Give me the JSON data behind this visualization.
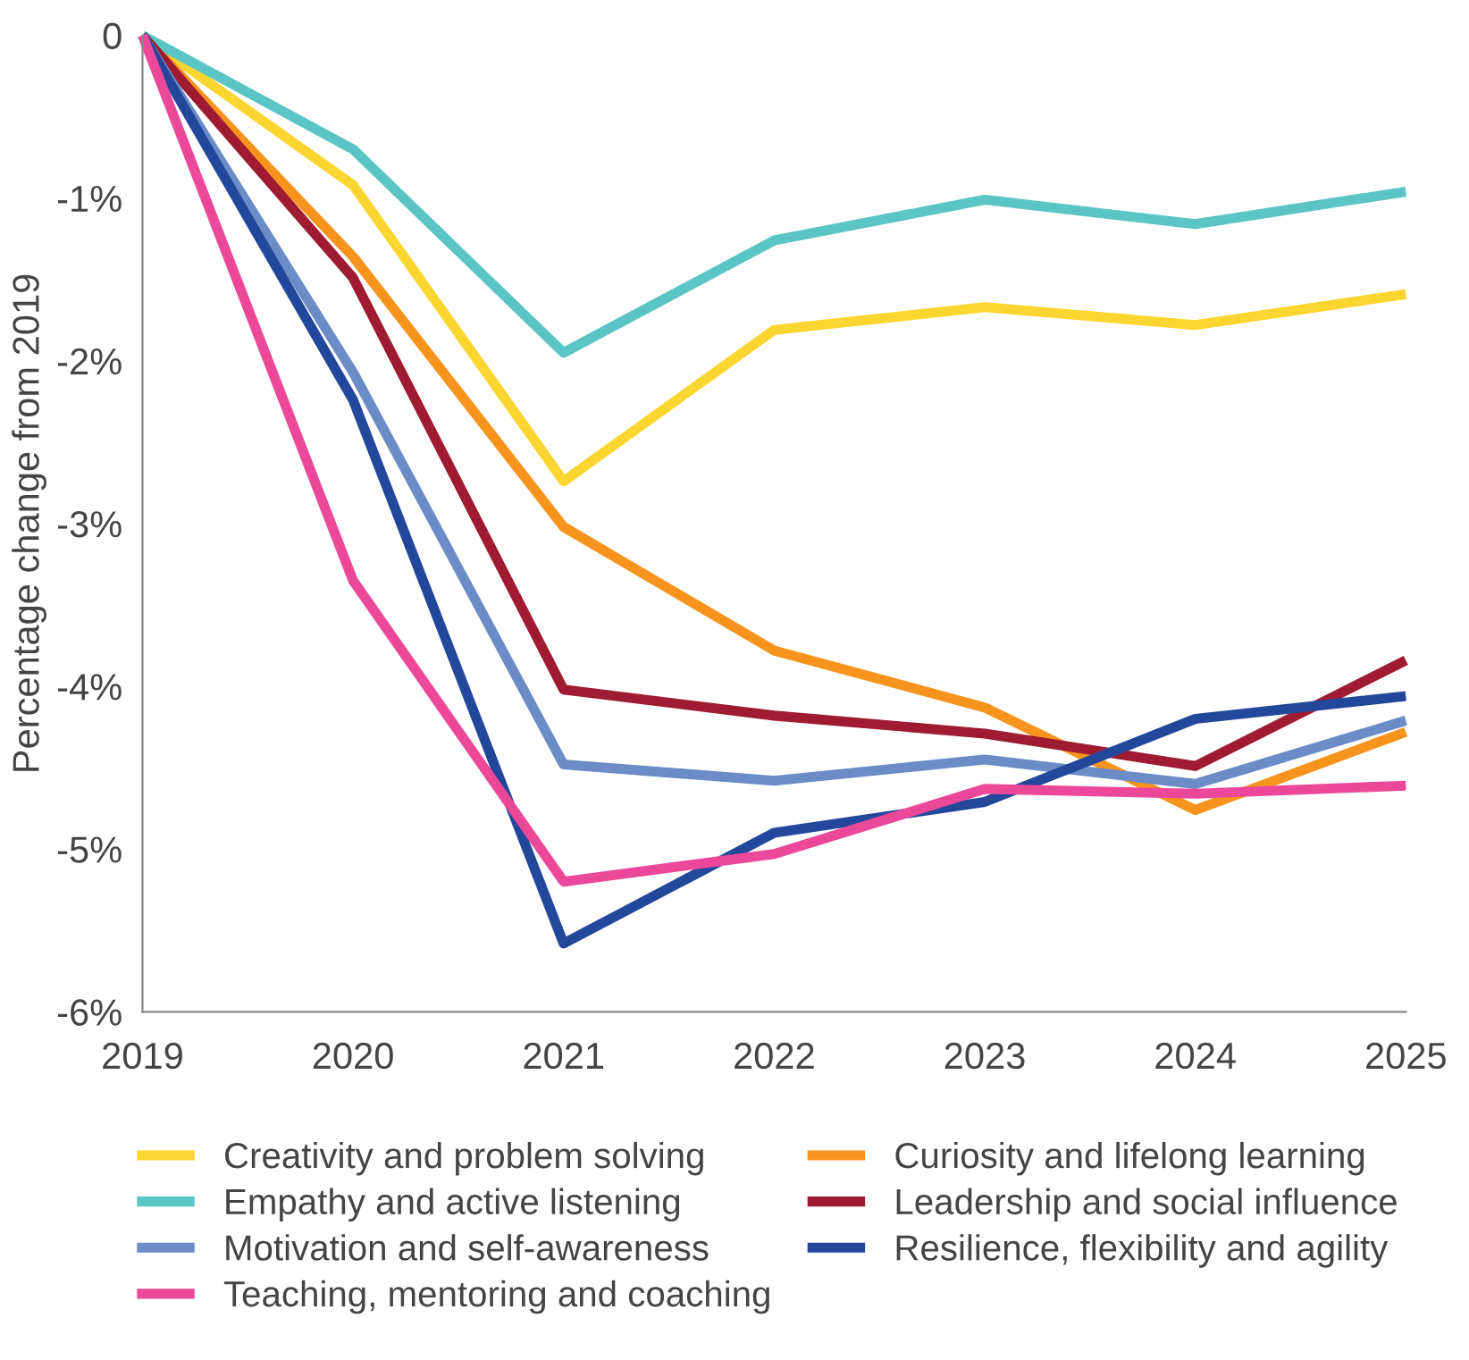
{
  "chart_data": {
    "type": "line",
    "ylabel": "Percentage change from 2019",
    "x": [
      2019,
      2020,
      2021,
      2022,
      2023,
      2024,
      2025
    ],
    "xlim": [
      2019,
      2025
    ],
    "xticks": [
      2019,
      2020,
      2021,
      2022,
      2023,
      2024,
      2025
    ],
    "ylim": [
      -6,
      0
    ],
    "yticks": [
      {
        "value": 0,
        "label": "0"
      },
      {
        "value": -1,
        "label": "-1%"
      },
      {
        "value": -2,
        "label": "-2%"
      },
      {
        "value": -3,
        "label": "-3%"
      },
      {
        "value": -4,
        "label": "-4%"
      },
      {
        "value": -5,
        "label": "-5%"
      },
      {
        "value": -6,
        "label": "-6%"
      }
    ],
    "grid": false,
    "legend": "bottom",
    "marker": "none",
    "line_style": "solid",
    "series": [
      {
        "name": "Creativity and problem solving",
        "color": "#fcd630",
        "values": [
          0,
          -0.92,
          -2.74,
          -1.81,
          -1.67,
          -1.78,
          -1.59
        ]
      },
      {
        "name": "Curiosity and lifelong learning",
        "color": "#f7941d",
        "values": [
          0,
          -1.36,
          -3.02,
          -3.78,
          -4.13,
          -4.76,
          -4.28
        ]
      },
      {
        "name": "Empathy and active listening",
        "color": "#5bc5c5",
        "values": [
          0,
          -0.7,
          -1.95,
          -1.26,
          -1.01,
          -1.16,
          -0.96
        ]
      },
      {
        "name": "Leadership and social influence",
        "color": "#9e1b32",
        "values": [
          0,
          -1.49,
          -4.02,
          -4.18,
          -4.29,
          -4.49,
          -3.84
        ]
      },
      {
        "name": "Motivation and self-awareness",
        "color": "#6b8cc7",
        "values": [
          0,
          -2.07,
          -4.48,
          -4.58,
          -4.45,
          -4.6,
          -4.21
        ]
      },
      {
        "name": "Resilience, flexibility and agility",
        "color": "#23479a",
        "values": [
          0,
          -2.24,
          -5.58,
          -4.9,
          -4.71,
          -4.2,
          -4.06
        ]
      },
      {
        "name": "Teaching, mentoring and coaching",
        "color": "#ec4899",
        "values": [
          0,
          -3.35,
          -5.2,
          -5.03,
          -4.63,
          -4.66,
          -4.61
        ]
      }
    ]
  }
}
